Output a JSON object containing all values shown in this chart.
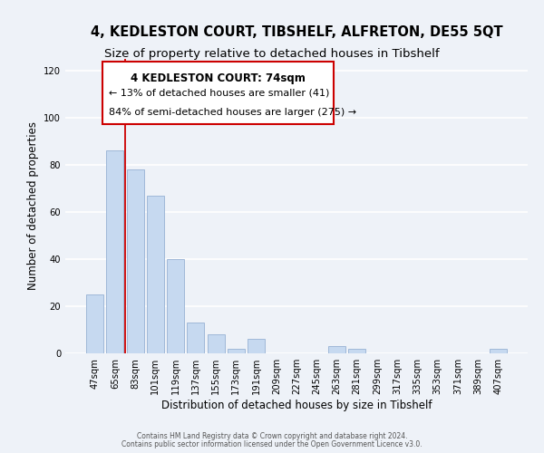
{
  "title": "4, KEDLESTON COURT, TIBSHELF, ALFRETON, DE55 5QT",
  "subtitle": "Size of property relative to detached houses in Tibshelf",
  "xlabel": "Distribution of detached houses by size in Tibshelf",
  "ylabel": "Number of detached properties",
  "bar_labels": [
    "47sqm",
    "65sqm",
    "83sqm",
    "101sqm",
    "119sqm",
    "137sqm",
    "155sqm",
    "173sqm",
    "191sqm",
    "209sqm",
    "227sqm",
    "245sqm",
    "263sqm",
    "281sqm",
    "299sqm",
    "317sqm",
    "335sqm",
    "353sqm",
    "371sqm",
    "389sqm",
    "407sqm"
  ],
  "bar_values": [
    25,
    86,
    78,
    67,
    40,
    13,
    8,
    2,
    6,
    0,
    0,
    0,
    3,
    2,
    0,
    0,
    0,
    0,
    0,
    0,
    2
  ],
  "bar_color": "#c6d9f0",
  "bar_edge_color": "#a0b8d8",
  "red_line_x": 1.5,
  "ylim": [
    0,
    125
  ],
  "yticks": [
    0,
    20,
    40,
    60,
    80,
    100,
    120
  ],
  "annotation_title": "4 KEDLESTON COURT: 74sqm",
  "annotation_line1": "← 13% of detached houses are smaller (41)",
  "annotation_line2": "84% of semi-detached houses are larger (275) →",
  "annotation_box_color": "#ffffff",
  "annotation_box_edge": "#cc0000",
  "footer_line1": "Contains HM Land Registry data © Crown copyright and database right 2024.",
  "footer_line2": "Contains public sector information licensed under the Open Government Licence v3.0.",
  "background_color": "#eef2f8",
  "grid_color": "#ffffff",
  "title_fontsize": 10.5,
  "subtitle_fontsize": 9.5,
  "axis_label_fontsize": 8.5,
  "tick_fontsize": 7.2,
  "ann_fontsize_title": 8.5,
  "ann_fontsize_body": 8.0
}
